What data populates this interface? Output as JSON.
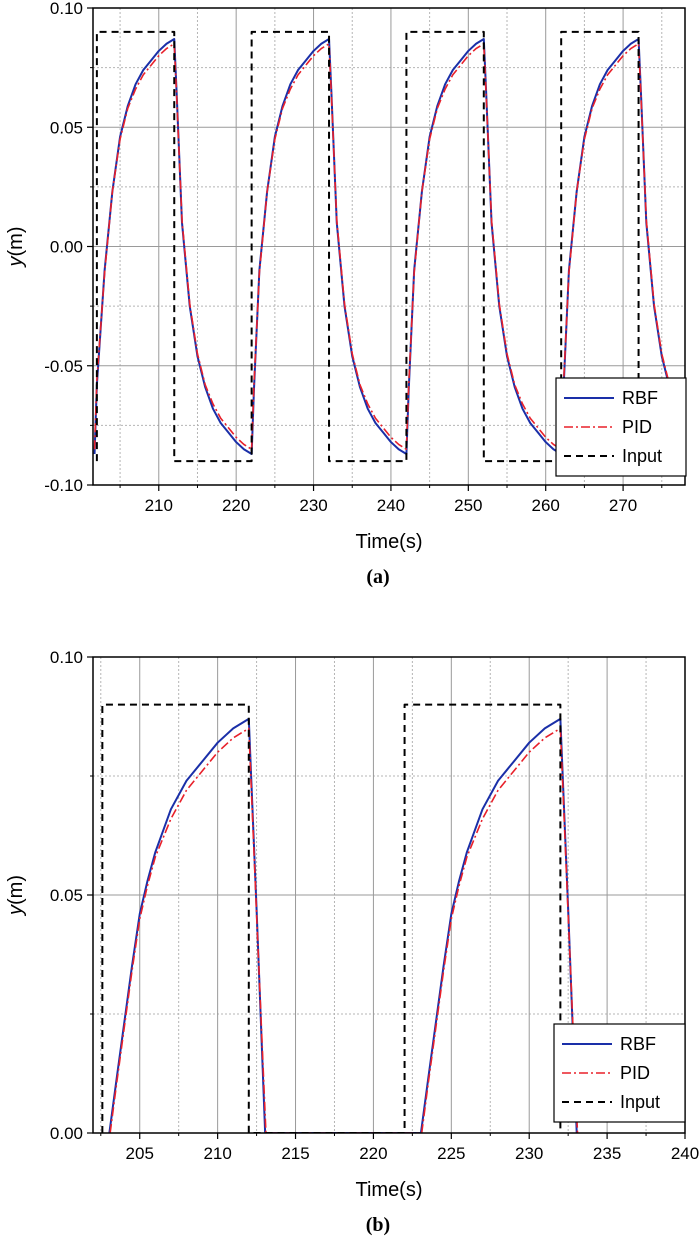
{
  "chart_data": [
    {
      "type": "line",
      "caption": "(a)",
      "xlabel": "Time(s)",
      "ylabel": "y(m)",
      "xlim": [
        201.5,
        278
      ],
      "ylim": [
        -0.1,
        0.1
      ],
      "xticks": [
        210,
        220,
        230,
        240,
        250,
        260,
        270
      ],
      "xtick_labels": [
        "210",
        "220",
        "230",
        "240",
        "250",
        "260",
        "270"
      ],
      "yticks": [
        -0.1,
        -0.05,
        0.0,
        0.05,
        0.1
      ],
      "ytick_labels": [
        "-0.10",
        "-0.05",
        "0.00",
        "0.05",
        "0.10"
      ],
      "grid": true,
      "legend_position": "bottom-right",
      "series": [
        {
          "name": "RBF",
          "color": "#1a2fa8",
          "style": "solid",
          "points": [
            [
              201.7,
              -0.087
            ],
            [
              202,
              -0.058
            ],
            [
              203,
              -0.01
            ],
            [
              204,
              0.023
            ],
            [
              205,
              0.046
            ],
            [
              206,
              0.059
            ],
            [
              207,
              0.068
            ],
            [
              208,
              0.074
            ],
            [
              209,
              0.078
            ],
            [
              210,
              0.082
            ],
            [
              211,
              0.085
            ],
            [
              212,
              0.087
            ],
            [
              212.3,
              0.065
            ],
            [
              213,
              0.01
            ],
            [
              214,
              -0.025
            ],
            [
              215,
              -0.046
            ],
            [
              216,
              -0.059
            ],
            [
              217,
              -0.068
            ],
            [
              218,
              -0.074
            ],
            [
              219,
              -0.078
            ],
            [
              220,
              -0.082
            ],
            [
              221,
              -0.085
            ],
            [
              222,
              -0.087
            ],
            [
              222.3,
              -0.06
            ],
            [
              223,
              -0.01
            ],
            [
              224,
              0.023
            ],
            [
              225,
              0.046
            ],
            [
              226,
              0.059
            ],
            [
              227,
              0.068
            ],
            [
              228,
              0.074
            ],
            [
              229,
              0.078
            ],
            [
              230,
              0.082
            ],
            [
              231,
              0.085
            ],
            [
              232,
              0.087
            ],
            [
              232.3,
              0.065
            ],
            [
              233,
              0.01
            ],
            [
              234,
              -0.025
            ],
            [
              235,
              -0.046
            ],
            [
              236,
              -0.059
            ],
            [
              237,
              -0.068
            ],
            [
              238,
              -0.074
            ],
            [
              239,
              -0.078
            ],
            [
              240,
              -0.082
            ],
            [
              241,
              -0.085
            ],
            [
              242,
              -0.087
            ],
            [
              242.3,
              -0.06
            ],
            [
              243,
              -0.01
            ],
            [
              244,
              0.023
            ],
            [
              245,
              0.046
            ],
            [
              246,
              0.059
            ],
            [
              247,
              0.068
            ],
            [
              248,
              0.074
            ],
            [
              249,
              0.078
            ],
            [
              250,
              0.082
            ],
            [
              251,
              0.085
            ],
            [
              252,
              0.087
            ],
            [
              252.3,
              0.065
            ],
            [
              253,
              0.01
            ],
            [
              254,
              -0.025
            ],
            [
              255,
              -0.046
            ],
            [
              256,
              -0.059
            ],
            [
              257,
              -0.068
            ],
            [
              258,
              -0.074
            ],
            [
              259,
              -0.078
            ],
            [
              260,
              -0.082
            ],
            [
              261,
              -0.085
            ],
            [
              262,
              -0.087
            ],
            [
              262.3,
              -0.06
            ],
            [
              263,
              -0.01
            ],
            [
              264,
              0.023
            ],
            [
              265,
              0.046
            ],
            [
              266,
              0.059
            ],
            [
              267,
              0.068
            ],
            [
              268,
              0.074
            ],
            [
              269,
              0.078
            ],
            [
              270,
              0.082
            ],
            [
              271,
              0.085
            ],
            [
              272,
              0.087
            ],
            [
              272.3,
              0.065
            ],
            [
              273,
              0.01
            ],
            [
              274,
              -0.025
            ],
            [
              275,
              -0.046
            ],
            [
              276,
              -0.059
            ],
            [
              277,
              -0.068
            ],
            [
              278,
              -0.075
            ]
          ]
        },
        {
          "name": "PID",
          "color": "#e8202a",
          "style": "dashdot",
          "points": [
            [
              201.7,
              -0.085
            ],
            [
              202,
              -0.056
            ],
            [
              203,
              -0.011
            ],
            [
              204,
              0.023
            ],
            [
              205,
              0.045
            ],
            [
              206,
              0.058
            ],
            [
              207,
              0.066
            ],
            [
              208,
              0.072
            ],
            [
              209,
              0.076
            ],
            [
              210,
              0.08
            ],
            [
              211,
              0.083
            ],
            [
              212,
              0.085
            ],
            [
              212.3,
              0.064
            ],
            [
              213,
              0.011
            ],
            [
              214,
              -0.024
            ],
            [
              215,
              -0.045
            ],
            [
              216,
              -0.058
            ],
            [
              217,
              -0.066
            ],
            [
              218,
              -0.072
            ],
            [
              219,
              -0.076
            ],
            [
              220,
              -0.08
            ],
            [
              221,
              -0.083
            ],
            [
              222,
              -0.085
            ],
            [
              222.3,
              -0.058
            ],
            [
              223,
              -0.011
            ],
            [
              224,
              0.023
            ],
            [
              225,
              0.045
            ],
            [
              226,
              0.058
            ],
            [
              227,
              0.066
            ],
            [
              228,
              0.072
            ],
            [
              229,
              0.076
            ],
            [
              230,
              0.08
            ],
            [
              231,
              0.083
            ],
            [
              232,
              0.085
            ],
            [
              232.3,
              0.064
            ],
            [
              233,
              0.011
            ],
            [
              234,
              -0.024
            ],
            [
              235,
              -0.045
            ],
            [
              236,
              -0.058
            ],
            [
              237,
              -0.066
            ],
            [
              238,
              -0.072
            ],
            [
              239,
              -0.076
            ],
            [
              240,
              -0.08
            ],
            [
              241,
              -0.083
            ],
            [
              242,
              -0.085
            ],
            [
              242.3,
              -0.058
            ],
            [
              243,
              -0.011
            ],
            [
              244,
              0.023
            ],
            [
              245,
              0.045
            ],
            [
              246,
              0.058
            ],
            [
              247,
              0.066
            ],
            [
              248,
              0.072
            ],
            [
              249,
              0.076
            ],
            [
              250,
              0.08
            ],
            [
              251,
              0.083
            ],
            [
              252,
              0.085
            ],
            [
              252.3,
              0.064
            ],
            [
              253,
              0.011
            ],
            [
              254,
              -0.024
            ],
            [
              255,
              -0.045
            ],
            [
              256,
              -0.058
            ],
            [
              257,
              -0.066
            ],
            [
              258,
              -0.072
            ],
            [
              259,
              -0.076
            ],
            [
              260,
              -0.08
            ],
            [
              261,
              -0.083
            ],
            [
              262,
              -0.085
            ],
            [
              262.3,
              -0.058
            ],
            [
              263,
              -0.011
            ],
            [
              264,
              0.023
            ],
            [
              265,
              0.045
            ],
            [
              266,
              0.058
            ],
            [
              267,
              0.066
            ],
            [
              268,
              0.072
            ],
            [
              269,
              0.076
            ],
            [
              270,
              0.08
            ],
            [
              271,
              0.083
            ],
            [
              272,
              0.085
            ],
            [
              272.3,
              0.064
            ],
            [
              273,
              0.011
            ],
            [
              274,
              -0.024
            ],
            [
              275,
              -0.045
            ],
            [
              276,
              -0.058
            ],
            [
              277,
              -0.066
            ],
            [
              278,
              -0.073
            ]
          ]
        },
        {
          "name": "Input",
          "color": "#000000",
          "style": "dashed",
          "points": [
            [
              202,
              -0.09
            ],
            [
              202,
              0.09
            ],
            [
              212,
              0.09
            ],
            [
              212,
              -0.09
            ],
            [
              222,
              -0.09
            ],
            [
              222,
              0.09
            ],
            [
              232,
              0.09
            ],
            [
              232,
              -0.09
            ],
            [
              242,
              -0.09
            ],
            [
              242,
              0.09
            ],
            [
              252,
              0.09
            ],
            [
              252,
              -0.09
            ],
            [
              262,
              -0.09
            ],
            [
              262,
              0.09
            ],
            [
              272,
              0.09
            ],
            [
              272,
              -0.09
            ],
            [
              278,
              -0.09
            ]
          ]
        }
      ]
    },
    {
      "type": "line",
      "caption": "(b)",
      "xlabel": "Time(s)",
      "ylabel": "y(m)",
      "xlim": [
        202,
        240
      ],
      "ylim": [
        0.0,
        0.1
      ],
      "xticks": [
        205,
        210,
        215,
        220,
        225,
        230,
        235,
        240
      ],
      "xtick_labels": [
        "205",
        "210",
        "215",
        "220",
        "225",
        "230",
        "235",
        "240"
      ],
      "yticks": [
        0.0,
        0.05,
        0.1
      ],
      "ytick_labels": [
        "0.00",
        "0.05",
        "0.10"
      ],
      "grid": true,
      "legend_position": "bottom-right",
      "series": [
        {
          "name": "RBF",
          "color": "#1a2fa8",
          "style": "solid",
          "points": [
            [
              203.05,
              0.0
            ],
            [
              203.5,
              0.011
            ],
            [
              204,
              0.023
            ],
            [
              204.5,
              0.035
            ],
            [
              205,
              0.046
            ],
            [
              205.5,
              0.053
            ],
            [
              206,
              0.059
            ],
            [
              207,
              0.068
            ],
            [
              208,
              0.074
            ],
            [
              209,
              0.078
            ],
            [
              210,
              0.082
            ],
            [
              211,
              0.085
            ],
            [
              212,
              0.087
            ],
            [
              212.5,
              0.047
            ],
            [
              213.05,
              0.0
            ],
            [
              223.05,
              0.0
            ],
            [
              223.5,
              0.011
            ],
            [
              224,
              0.023
            ],
            [
              224.5,
              0.035
            ],
            [
              225,
              0.046
            ],
            [
              225.5,
              0.053
            ],
            [
              226,
              0.059
            ],
            [
              227,
              0.068
            ],
            [
              228,
              0.074
            ],
            [
              229,
              0.078
            ],
            [
              230,
              0.082
            ],
            [
              231,
              0.085
            ],
            [
              232,
              0.087
            ],
            [
              232.5,
              0.047
            ],
            [
              233.05,
              0.0
            ]
          ]
        },
        {
          "name": "PID",
          "color": "#e8202a",
          "style": "dashdot",
          "points": [
            [
              203.1,
              0.0
            ],
            [
              203.5,
              0.01
            ],
            [
              204,
              0.022
            ],
            [
              204.5,
              0.034
            ],
            [
              205,
              0.045
            ],
            [
              205.5,
              0.052
            ],
            [
              206,
              0.058
            ],
            [
              207,
              0.066
            ],
            [
              208,
              0.072
            ],
            [
              209,
              0.076
            ],
            [
              210,
              0.08
            ],
            [
              211,
              0.083
            ],
            [
              212,
              0.085
            ],
            [
              212.5,
              0.046
            ],
            [
              213.1,
              0.0
            ],
            [
              223.1,
              0.0
            ],
            [
              223.5,
              0.01
            ],
            [
              224,
              0.022
            ],
            [
              224.5,
              0.034
            ],
            [
              225,
              0.045
            ],
            [
              225.5,
              0.052
            ],
            [
              226,
              0.058
            ],
            [
              227,
              0.066
            ],
            [
              228,
              0.072
            ],
            [
              229,
              0.076
            ],
            [
              230,
              0.08
            ],
            [
              231,
              0.083
            ],
            [
              232,
              0.085
            ],
            [
              232.5,
              0.046
            ],
            [
              233.1,
              0.0
            ]
          ]
        },
        {
          "name": "Input",
          "color": "#000000",
          "style": "dashed",
          "points": [
            [
              202.6,
              0.0
            ],
            [
              202.6,
              0.09
            ],
            [
              212,
              0.09
            ],
            [
              212,
              0.0
            ],
            [
              222,
              0.0
            ],
            [
              222,
              0.09
            ],
            [
              232,
              0.09
            ],
            [
              232,
              0.0
            ]
          ]
        }
      ]
    }
  ]
}
